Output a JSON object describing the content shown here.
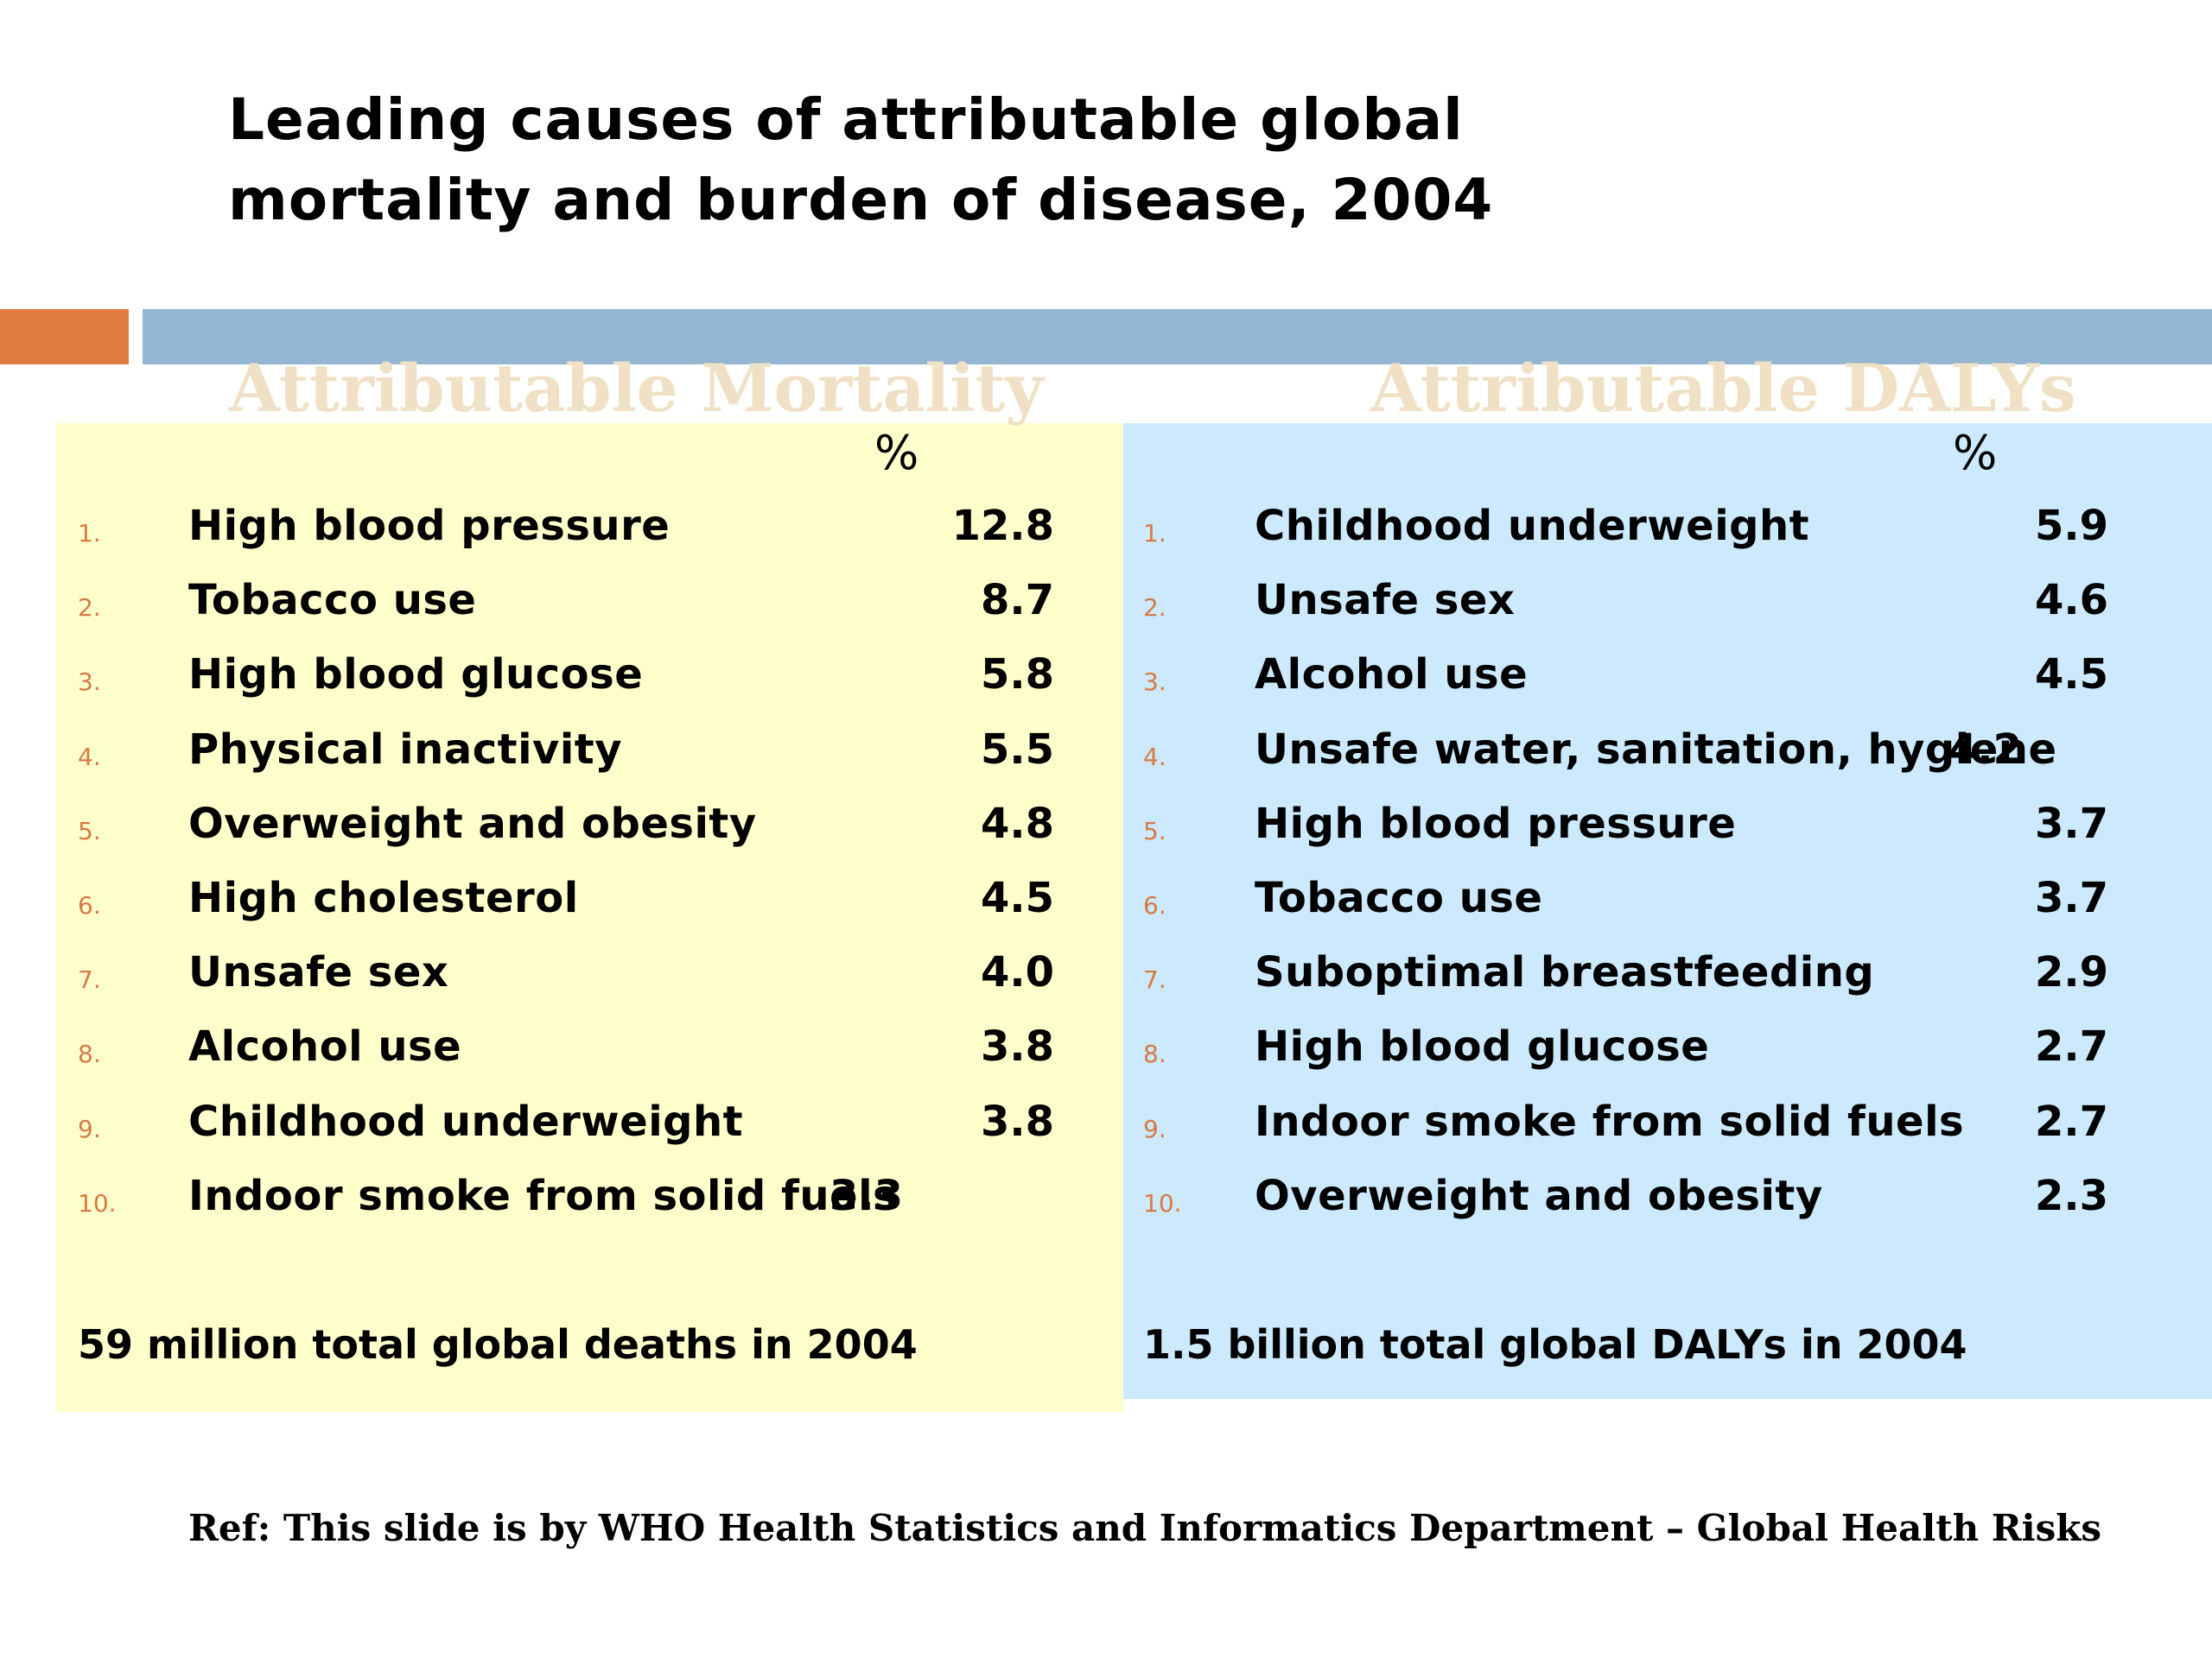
{
  "title": {
    "line1": "Leading causes of attributable global",
    "line2": "mortality and burden of disease, 2004"
  },
  "colors": {
    "orange_bar": "#e07b40",
    "blue_bar": "#94b6d2",
    "left_panel": "#ffffcc",
    "right_panel": "#cce9fd",
    "heading": "#f0e1c6",
    "number_marker": "#d77a46"
  },
  "mortality": {
    "heading": "Attributable Mortality",
    "unit": "%",
    "items": [
      {
        "num": "1.",
        "label": "High blood pressure",
        "value": "12.8"
      },
      {
        "num": "2.",
        "label": "Tobacco use",
        "value": "8.7"
      },
      {
        "num": "3.",
        "label": "High blood glucose",
        "value": "5.8"
      },
      {
        "num": "4.",
        "label": "Physical inactivity",
        "value": "5.5"
      },
      {
        "num": "5.",
        "label": "Overweight and obesity",
        "value": "4.8"
      },
      {
        "num": "6.",
        "label": "High cholesterol",
        "value": "4.5"
      },
      {
        "num": "7.",
        "label": "Unsafe sex",
        "value": "4.0"
      },
      {
        "num": "8.",
        "label": "Alcohol use",
        "value": "3.8"
      },
      {
        "num": "9.",
        "label": "Childhood underweight",
        "value": "3.8"
      },
      {
        "num": "10.",
        "label": "Indoor smoke from solid fuels",
        "value": "3.3"
      }
    ],
    "total": "59 million total global deaths in 2004"
  },
  "dalys": {
    "heading": "Attributable DALYs",
    "unit": "%",
    "items": [
      {
        "num": "1.",
        "label": "Childhood underweight",
        "value": "5.9"
      },
      {
        "num": "2.",
        "label": "Unsafe sex",
        "value": "4.6"
      },
      {
        "num": "3.",
        "label": "Alcohol use",
        "value": "4.5"
      },
      {
        "num": "4.",
        "label": "Unsafe water, sanitation, hygiene",
        "value": "4.2"
      },
      {
        "num": "5.",
        "label": "High blood pressure",
        "value": "3.7"
      },
      {
        "num": "6.",
        "label": "Tobacco use",
        "value": "3.7"
      },
      {
        "num": "7.",
        "label": "Suboptimal breastfeeding",
        "value": "2.9"
      },
      {
        "num": "8.",
        "label": "High blood glucose",
        "value": "2.7"
      },
      {
        "num": "9.",
        "label": "Indoor smoke from solid fuels",
        "value": "2.7"
      },
      {
        "num": "10.",
        "label": "Overweight and obesity",
        "value": "2.3"
      }
    ],
    "total": "1.5 billion total global DALYs in 2004"
  },
  "ref": "Ref: This slide is by WHO Health Statistics and Informatics Department – Global Health Risks"
}
